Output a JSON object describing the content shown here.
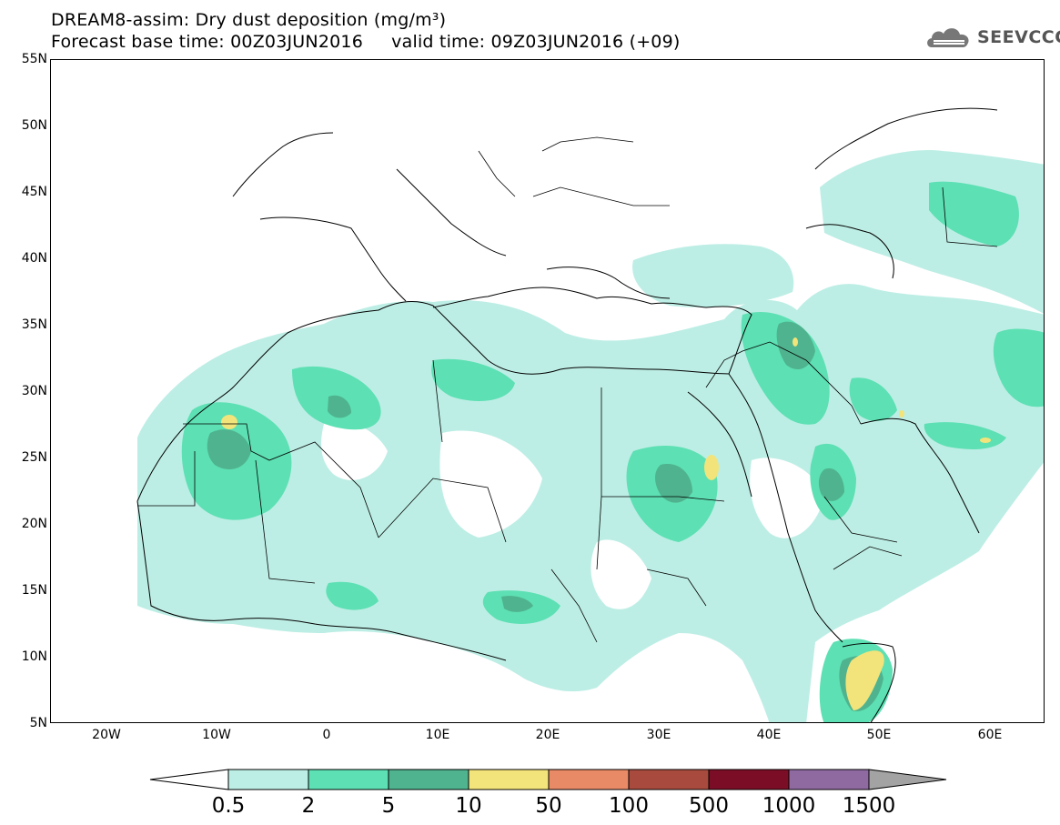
{
  "header": {
    "title_line1": "DREAM8-assim: Dry dust deposition (mg/m³)",
    "title_line2": "Forecast base time: 00Z03JUN2016     valid time: 09Z03JUN2016 (+09)"
  },
  "logo": {
    "text": "SEEVCCC",
    "icon": "cloud-icon"
  },
  "map": {
    "lat_labels": [
      "55N",
      "50N",
      "45N",
      "40N",
      "35N",
      "30N",
      "25N",
      "20N",
      "15N",
      "10N",
      "5N"
    ],
    "lon_labels": [
      "20W",
      "10W",
      "0",
      "10E",
      "20E",
      "30E",
      "40E",
      "50E",
      "60E"
    ],
    "lon_range": [
      -25,
      65
    ],
    "lat_range": [
      5,
      55
    ]
  },
  "colorbar": {
    "thresholds": [
      "0.5",
      "2",
      "5",
      "10",
      "50",
      "100",
      "500",
      "1000",
      "1500"
    ],
    "colors": [
      "#ffffff",
      "#bdeee5",
      "#5de0b3",
      "#4fb38f",
      "#f2e47a",
      "#e88a66",
      "#a84b3e",
      "#7b0d26",
      "#8f6aa0",
      "#a3a3a3"
    ]
  }
}
